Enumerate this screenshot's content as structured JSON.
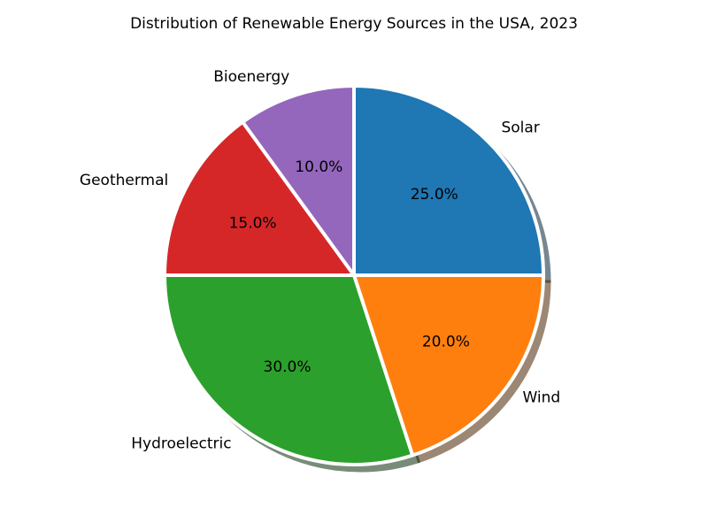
{
  "chart_data": {
    "type": "pie",
    "title": "Distribution of Renewable Energy Sources in the USA, 2023",
    "categories": [
      "Solar",
      "Wind",
      "Hydroelectric",
      "Geothermal",
      "Bioenergy"
    ],
    "values": [
      25.0,
      20.0,
      30.0,
      15.0,
      10.0
    ],
    "percent_labels": [
      "25.0%",
      "20.0%",
      "30.0%",
      "15.0%",
      "10.0%"
    ],
    "colors": [
      "#1f77b4",
      "#ff7f0e",
      "#2ca02c",
      "#d62728",
      "#9467bd"
    ],
    "start_angle_deg": 90,
    "direction": "clockwise",
    "shadow": true,
    "edge_color": "#ffffff",
    "legend": "none"
  }
}
